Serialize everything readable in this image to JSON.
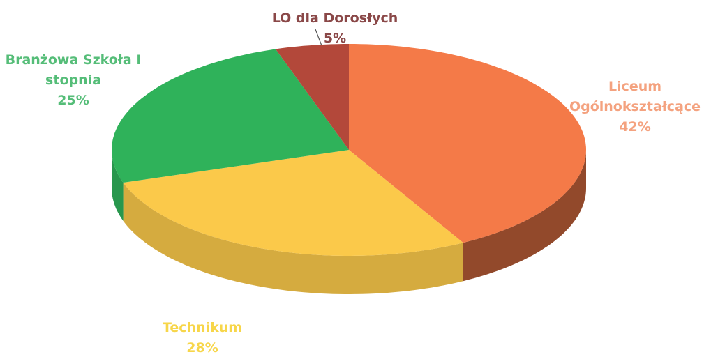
{
  "chart_data": {
    "type": "pie3d",
    "categories": [
      "Liceum Ogólnokształcące",
      "Technikum",
      "Branżowa Szkoła I stopnia",
      "LO dla Dorosłych"
    ],
    "values": [
      42,
      28,
      25,
      5
    ],
    "value_labels": [
      "42%",
      "28%",
      "25%",
      "5%"
    ],
    "colors": [
      "#f47a48",
      "#fbc94a",
      "#2fb25a",
      "#b3483a"
    ],
    "label_colors": [
      "#f4a27f",
      "#f7d64a",
      "#55bd78",
      "#8a4848"
    ]
  }
}
